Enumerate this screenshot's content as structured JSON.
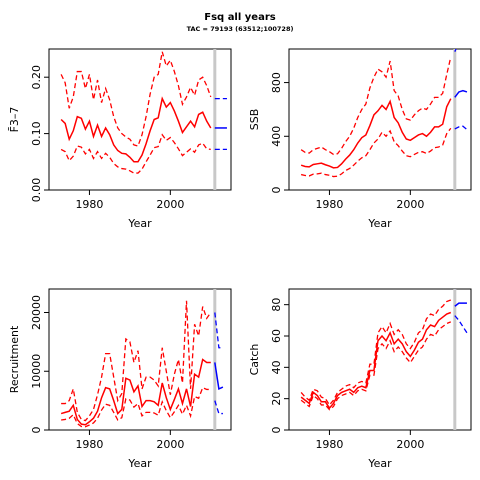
{
  "figure": {
    "title": "Fsq all years",
    "subtitle": "TAC = 79193 (63512;100728)"
  },
  "colors": {
    "historic": "#ff0000",
    "forecast": "#0000ff",
    "divider": "#c8c8c8",
    "axis": "#000000"
  },
  "chart_data": [
    {
      "type": "line",
      "id": "fbar",
      "xlabel": "Year",
      "ylabel": "F̄3–7",
      "xlim": [
        1970,
        2015
      ],
      "ylim": [
        0,
        0.25
      ],
      "xticks": [
        1980,
        2000
      ],
      "yticks": [
        0.0,
        0.1,
        0.2
      ],
      "ytick_labels": [
        "0.00",
        "0.10",
        "0.20"
      ],
      "divider_year": 2011,
      "historic": {
        "x": [
          1973,
          1974,
          1975,
          1976,
          1977,
          1978,
          1979,
          1980,
          1981,
          1982,
          1983,
          1984,
          1985,
          1986,
          1987,
          1988,
          1989,
          1990,
          1991,
          1992,
          1993,
          1994,
          1995,
          1996,
          1997,
          1998,
          1999,
          2000,
          2001,
          2002,
          2003,
          2004,
          2005,
          2006,
          2007,
          2008,
          2009,
          2010
        ],
        "median": [
          0.125,
          0.118,
          0.09,
          0.105,
          0.13,
          0.127,
          0.108,
          0.122,
          0.095,
          0.115,
          0.095,
          0.11,
          0.098,
          0.08,
          0.07,
          0.065,
          0.064,
          0.058,
          0.05,
          0.05,
          0.062,
          0.082,
          0.105,
          0.125,
          0.128,
          0.162,
          0.147,
          0.155,
          0.14,
          0.122,
          0.102,
          0.112,
          0.122,
          0.112,
          0.134,
          0.138,
          0.122,
          0.11
        ],
        "upper": [
          0.205,
          0.19,
          0.145,
          0.165,
          0.21,
          0.21,
          0.18,
          0.205,
          0.16,
          0.195,
          0.155,
          0.18,
          0.16,
          0.13,
          0.11,
          0.1,
          0.094,
          0.09,
          0.08,
          0.078,
          0.098,
          0.13,
          0.17,
          0.2,
          0.205,
          0.245,
          0.22,
          0.23,
          0.21,
          0.185,
          0.152,
          0.165,
          0.182,
          0.168,
          0.195,
          0.2,
          0.185,
          0.165
        ],
        "lower": [
          0.072,
          0.068,
          0.052,
          0.06,
          0.078,
          0.076,
          0.064,
          0.072,
          0.056,
          0.068,
          0.056,
          0.065,
          0.058,
          0.047,
          0.041,
          0.038,
          0.037,
          0.034,
          0.03,
          0.03,
          0.037,
          0.05,
          0.062,
          0.075,
          0.077,
          0.098,
          0.088,
          0.093,
          0.084,
          0.073,
          0.061,
          0.067,
          0.073,
          0.067,
          0.08,
          0.083,
          0.073,
          0.072
        ]
      },
      "forecast": {
        "x": [
          2011,
          2012,
          2013,
          2014
        ],
        "median": [
          0.11,
          0.11,
          0.11,
          0.11
        ],
        "upper": [
          0.162,
          0.162,
          0.162,
          0.162
        ],
        "lower": [
          0.072,
          0.072,
          0.072,
          0.072
        ]
      }
    },
    {
      "type": "line",
      "id": "ssb",
      "xlabel": "Year",
      "ylabel": "SSB",
      "xlim": [
        1970,
        2015
      ],
      "ylim": [
        0,
        1050
      ],
      "xticks": [
        1980,
        2000
      ],
      "yticks": [
        0,
        400,
        800
      ],
      "ytick_labels": [
        "0",
        "400",
        "800"
      ],
      "divider_year": 2011,
      "historic": {
        "x": [
          1973,
          1974,
          1975,
          1976,
          1977,
          1978,
          1979,
          1980,
          1981,
          1982,
          1983,
          1984,
          1985,
          1986,
          1987,
          1988,
          1989,
          1990,
          1991,
          1992,
          1993,
          1994,
          1995,
          1996,
          1997,
          1998,
          1999,
          2000,
          2001,
          2002,
          2003,
          2004,
          2005,
          2006,
          2007,
          2008,
          2009,
          2010
        ],
        "median": [
          185,
          175,
          172,
          190,
          195,
          200,
          188,
          178,
          165,
          168,
          195,
          230,
          260,
          300,
          350,
          390,
          410,
          480,
          560,
          590,
          630,
          600,
          660,
          540,
          500,
          430,
          380,
          370,
          390,
          410,
          420,
          400,
          430,
          470,
          470,
          490,
          620,
          680
        ],
        "upper": [
          300,
          280,
          275,
          300,
          310,
          320,
          300,
          285,
          265,
          270,
          310,
          360,
          400,
          460,
          540,
          600,
          640,
          760,
          840,
          900,
          880,
          840,
          960,
          740,
          700,
          600,
          530,
          520,
          560,
          590,
          610,
          600,
          640,
          690,
          690,
          720,
          860,
          990
        ],
        "lower": [
          115,
          108,
          105,
          118,
          120,
          125,
          115,
          110,
          100,
          103,
          120,
          145,
          160,
          185,
          215,
          240,
          255,
          300,
          350,
          380,
          430,
          400,
          440,
          360,
          330,
          290,
          255,
          248,
          265,
          280,
          285,
          272,
          290,
          315,
          320,
          335,
          420,
          460
        ]
      },
      "forecast": {
        "x": [
          2011,
          2012,
          2013,
          2014
        ],
        "median": [
          690,
          730,
          740,
          730
        ],
        "upper": [
          1030,
          1100,
          1120,
          1110
        ],
        "lower": [
          455,
          470,
          475,
          450
        ]
      }
    },
    {
      "type": "line",
      "id": "recruitment",
      "xlabel": "Year",
      "ylabel": "Recruitment",
      "xlim": [
        1970,
        2015
      ],
      "ylim": [
        0,
        24000
      ],
      "xticks": [
        1980,
        2000
      ],
      "yticks": [
        0,
        10000,
        20000
      ],
      "ytick_labels": [
        "0",
        "10000",
        "20000"
      ],
      "divider_year": 2011,
      "historic": {
        "x": [
          1973,
          1974,
          1975,
          1976,
          1977,
          1978,
          1979,
          1980,
          1981,
          1982,
          1983,
          1984,
          1985,
          1986,
          1987,
          1988,
          1989,
          1990,
          1991,
          1992,
          1993,
          1994,
          1995,
          1996,
          1997,
          1998,
          1999,
          2000,
          2001,
          2002,
          2003,
          2004,
          2005,
          2006,
          2007,
          2008,
          2009,
          2010
        ],
        "median": [
          2800,
          3000,
          3200,
          4200,
          1800,
          1000,
          900,
          1400,
          2000,
          3200,
          5500,
          7200,
          7000,
          5000,
          2800,
          3500,
          8800,
          8500,
          6500,
          7500,
          4000,
          5000,
          5000,
          4800,
          4200,
          8000,
          5500,
          3500,
          5200,
          7000,
          4500,
          7000,
          4000,
          9500,
          9000,
          12000,
          11500,
          11500
        ],
        "upper": [
          4500,
          4500,
          5000,
          7000,
          3000,
          1800,
          1600,
          2400,
          3500,
          6000,
          9000,
          13000,
          13000,
          9000,
          5000,
          6200,
          15500,
          15000,
          11500,
          13500,
          7000,
          9000,
          9000,
          8500,
          7500,
          14000,
          10000,
          6000,
          9500,
          12000,
          8000,
          22000,
          7000,
          18000,
          16000,
          21000,
          19000,
          20000
        ],
        "lower": [
          1700,
          1800,
          2000,
          2600,
          1100,
          600,
          550,
          850,
          1200,
          2000,
          3400,
          4400,
          4200,
          3000,
          1700,
          2100,
          5300,
          5100,
          3900,
          4500,
          2400,
          3000,
          3000,
          2900,
          2500,
          4800,
          3300,
          2100,
          3100,
          4200,
          2700,
          4200,
          2400,
          5700,
          5400,
          7200,
          6900,
          6900
        ]
      },
      "forecast": {
        "x": [
          2011,
          2012,
          2013
        ],
        "median": [
          11500,
          7000,
          7300
        ],
        "upper": [
          20000,
          14000,
          14000
        ],
        "lower": [
          5000,
          2800,
          2800
        ]
      }
    },
    {
      "type": "line",
      "id": "catch",
      "xlabel": "Year",
      "ylabel": "Catch",
      "xlim": [
        1970,
        2015
      ],
      "ylim": [
        0,
        90
      ],
      "xticks": [
        1980,
        2000
      ],
      "yticks": [
        0,
        20,
        40,
        60,
        80
      ],
      "ytick_labels": [
        "0",
        "20",
        "40",
        "60",
        "80"
      ],
      "divider_year": 2011,
      "historic": {
        "x": [
          1973,
          1974,
          1975,
          1976,
          1977,
          1978,
          1979,
          1980,
          1981,
          1982,
          1983,
          1984,
          1985,
          1986,
          1987,
          1988,
          1989,
          1990,
          1991,
          1992,
          1993,
          1994,
          1995,
          1996,
          1997,
          1998,
          1999,
          2000,
          2001,
          2002,
          2003,
          2004,
          2005,
          2006,
          2007,
          2008,
          2009,
          2010
        ],
        "median": [
          21,
          19,
          17,
          24,
          22,
          18,
          18,
          14,
          17,
          22,
          24,
          25,
          26,
          24,
          27,
          28,
          27,
          38,
          38,
          57,
          60,
          57,
          62,
          55,
          58,
          55,
          50,
          47,
          51,
          56,
          58,
          64,
          67,
          66,
          70,
          72,
          74,
          75
        ],
        "upper": [
          24,
          21,
          19,
          26,
          25,
          21,
          20,
          16,
          19,
          24,
          26,
          28,
          29,
          27,
          30,
          31,
          30,
          42,
          42,
          62,
          66,
          62,
          68,
          61,
          64,
          61,
          55,
          52,
          56,
          62,
          64,
          71,
          74,
          73,
          77,
          79,
          82,
          83
        ],
        "lower": [
          19,
          17,
          15,
          22,
          20,
          16,
          16,
          13,
          15,
          20,
          22,
          23,
          24,
          22,
          25,
          26,
          25,
          35,
          35,
          52,
          55,
          52,
          57,
          50,
          53,
          50,
          46,
          43,
          47,
          51,
          53,
          58,
          61,
          60,
          64,
          66,
          68,
          69
        ]
      },
      "forecast": {
        "x": [
          2011,
          2012,
          2013,
          2014
        ],
        "median": [
          79,
          81,
          81,
          81
        ],
        "upper": [
          90,
          95,
          96,
          95
        ],
        "lower": [
          73,
          70,
          66,
          62
        ]
      }
    }
  ]
}
